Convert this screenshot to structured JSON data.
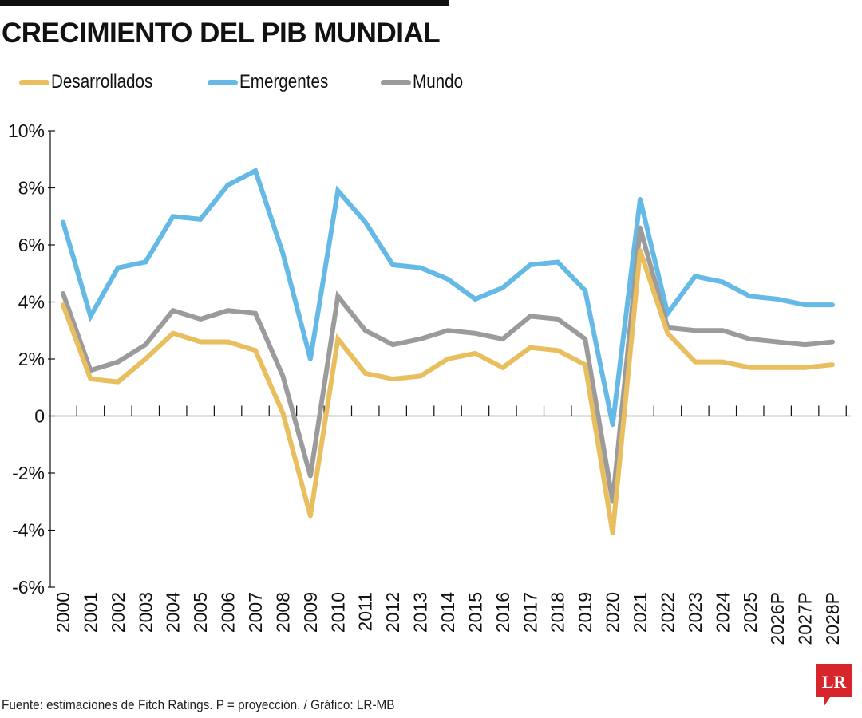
{
  "header": {
    "title": "CRECIMIENTO DEL PIB MUNDIAL"
  },
  "legend": [
    {
      "label": "Desarrollados",
      "color": "#E9BE5E"
    },
    {
      "label": "Emergentes",
      "color": "#64B9E6"
    },
    {
      "label": "Mundo",
      "color": "#9B9B9B"
    }
  ],
  "footer": {
    "source": "Fuente: estimaciones de Fitch Ratings. P = proyección. / Gráfico: LR-MB"
  },
  "logo": {
    "text": "LR",
    "color": "#D6262C",
    "icon": "lr-logo-icon"
  },
  "chart_data": {
    "type": "line",
    "title": "CRECIMIENTO DEL PIB MUNDIAL",
    "xlabel": "",
    "ylabel": "",
    "ylim": [
      -6,
      10
    ],
    "y_ticks": [
      {
        "value": 10,
        "label": "10%"
      },
      {
        "value": 8,
        "label": "8%"
      },
      {
        "value": 6,
        "label": "6%"
      },
      {
        "value": 4,
        "label": "4%"
      },
      {
        "value": 2,
        "label": "2%"
      },
      {
        "value": 0,
        "label": "0"
      },
      {
        "value": -2,
        "label": "-2%"
      },
      {
        "value": -4,
        "label": "-4%"
      },
      {
        "value": -6,
        "label": "-6%"
      }
    ],
    "categories": [
      "2000",
      "2001",
      "2002",
      "2003",
      "2004",
      "2005",
      "2006",
      "2007",
      "2008",
      "2009",
      "2010",
      "2011",
      "2012",
      "2013",
      "2014",
      "2015",
      "2016",
      "2017",
      "2018",
      "2019",
      "2020",
      "2021",
      "2022",
      "2023",
      "2024",
      "2025",
      "2026P",
      "2027P",
      "2028P"
    ],
    "grid": false,
    "legend_position": "top-left",
    "series": [
      {
        "name": "Desarrollados",
        "color": "#E9BE5E",
        "values": [
          3.9,
          1.3,
          1.2,
          2.0,
          2.9,
          2.6,
          2.6,
          2.3,
          0.1,
          -3.5,
          2.7,
          1.5,
          1.3,
          1.4,
          2.0,
          2.2,
          1.7,
          2.4,
          2.3,
          1.8,
          -4.1,
          5.8,
          2.9,
          1.9,
          1.9,
          1.7,
          1.7,
          1.7,
          1.8
        ]
      },
      {
        "name": "Emergentes",
        "color": "#64B9E6",
        "values": [
          6.8,
          3.5,
          5.2,
          5.4,
          7.0,
          6.9,
          8.1,
          8.6,
          5.7,
          2.0,
          7.9,
          6.8,
          5.3,
          5.2,
          4.8,
          4.1,
          4.5,
          5.3,
          5.4,
          4.4,
          -0.3,
          7.6,
          3.6,
          4.9,
          4.7,
          4.2,
          4.1,
          3.9,
          3.9
        ]
      },
      {
        "name": "Mundo",
        "color": "#9B9B9B",
        "values": [
          4.3,
          1.6,
          1.9,
          2.5,
          3.7,
          3.4,
          3.7,
          3.6,
          1.4,
          -2.1,
          4.2,
          3.0,
          2.5,
          2.7,
          3.0,
          2.9,
          2.7,
          3.5,
          3.4,
          2.7,
          -3.0,
          6.6,
          3.1,
          3.0,
          3.0,
          2.7,
          2.6,
          2.5,
          2.6
        ]
      }
    ]
  }
}
